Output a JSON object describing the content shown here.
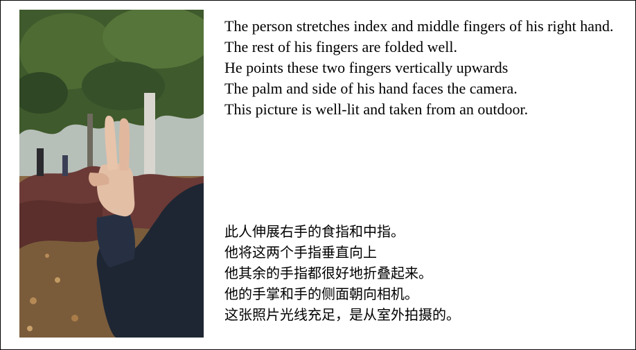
{
  "english_lines": [
    "The person stretches index and middle fingers of his right hand.",
    "The rest of his fingers are folded well.",
    "He points these two fingers vertically upwards",
    "The palm and side of his hand faces the camera.",
    "This picture is well-lit and taken from an outdoor."
  ],
  "chinese_lines": [
    "此人伸展右手的食指和中指。",
    "他将这两个手指垂直向上",
    "他其余的手指都很好地折叠起来。",
    "他的手掌和手的侧面朝向相机。",
    "这张照片光线充足，是从室外拍摄的。"
  ],
  "photo": {
    "subject": "right hand making a V sign with index and middle fingers raised, person in dark jacket, outdoor park with trees",
    "colors": {
      "foliage": "#3f5a2c",
      "sky": "#c9d1c8",
      "ground": "#8a6a45",
      "bushes": "#6b3a36",
      "jacket": "#1f2633",
      "skin": "#e3bfa6",
      "trunk": "#d9d6cf"
    }
  }
}
